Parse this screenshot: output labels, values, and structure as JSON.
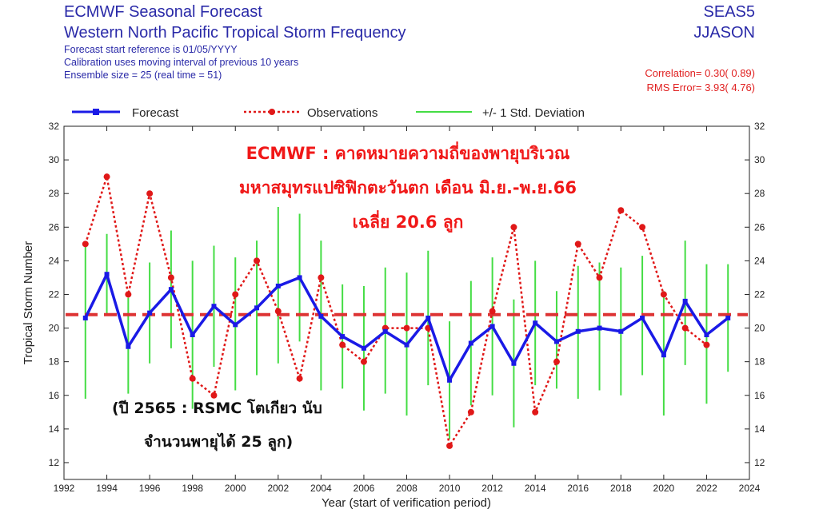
{
  "header": {
    "title": "ECMWF Seasonal Forecast",
    "subtitle": "Western North Pacific Tropical Storm Frequency",
    "line3": "Forecast start reference is 01/05/YYYY",
    "line4": "Calibration uses moving interval of previous 10 years",
    "line5": "Ensemble size =  25   (real time = 51)",
    "system": "SEAS5",
    "season": "JJASON",
    "correlation": "Correlation= 0.30( 0.89)",
    "rms": "RMS Error= 3.93( 4.76)"
  },
  "annotations": {
    "thai_line1": "ECMWF : คาดหมายความถี่ของพายุบริเวณ",
    "thai_line2": "มหาสมุทรแปซิฟิกตะวันตก เดือน มิ.ย.-พ.ย.66",
    "thai_line3": "เฉลี่ย 20.6 ลูก",
    "note_line1": "(ปี 2565 : RSMC โตเกียว นับ",
    "note_line2": "จำนวนพายุได้ 25 ลูก)"
  },
  "colors": {
    "forecast": "#1a1ae6",
    "observations": "#e01818",
    "std": "#44dd44",
    "mean_line": "#dd3333"
  },
  "chart_data": {
    "type": "line",
    "xlabel": "Year (start of verification period)",
    "ylabel": "Tropical Storm Number",
    "xlim": [
      1992,
      2024
    ],
    "ylim": [
      11,
      32
    ],
    "xticks": [
      1992,
      1994,
      1996,
      1998,
      2000,
      2002,
      2004,
      2006,
      2008,
      2010,
      2012,
      2014,
      2016,
      2018,
      2020,
      2022,
      2024
    ],
    "yticks": [
      12,
      14,
      16,
      18,
      20,
      22,
      24,
      26,
      28,
      30,
      32
    ],
    "legend": [
      "Forecast",
      "Observations",
      "+/- 1 Std. Deviation"
    ],
    "mean_value": 20.8,
    "forecast": {
      "name": "Forecast",
      "x": [
        1993,
        1994,
        1995,
        1996,
        1997,
        1998,
        1999,
        2000,
        2001,
        2002,
        2003,
        2004,
        2005,
        2006,
        2007,
        2008,
        2009,
        2010,
        2011,
        2012,
        2013,
        2014,
        2015,
        2016,
        2017,
        2018,
        2019,
        2020,
        2021,
        2022,
        2023
      ],
      "y": [
        20.6,
        23.2,
        18.9,
        20.9,
        22.3,
        19.6,
        21.3,
        20.2,
        21.2,
        22.5,
        23.0,
        20.7,
        19.5,
        18.8,
        19.8,
        19.0,
        20.6,
        16.9,
        19.1,
        20.1,
        17.9,
        20.3,
        19.2,
        19.8,
        20.0,
        19.8,
        20.6,
        18.4,
        21.6,
        19.6,
        20.6
      ]
    },
    "std_dev": {
      "name": "+/- 1 Std. Deviation",
      "x": [
        1993,
        1994,
        1995,
        1996,
        1997,
        1998,
        1999,
        2000,
        2001,
        2002,
        2003,
        2004,
        2005,
        2006,
        2007,
        2008,
        2009,
        2010,
        2011,
        2012,
        2013,
        2014,
        2015,
        2016,
        2017,
        2018,
        2019,
        2020,
        2021,
        2022,
        2023
      ],
      "low": [
        15.8,
        20.8,
        16.1,
        17.9,
        18.8,
        15.2,
        17.7,
        16.3,
        17.2,
        17.9,
        19.2,
        16.3,
        16.4,
        15.1,
        16.1,
        14.8,
        16.6,
        13.4,
        15.4,
        16.0,
        14.1,
        16.6,
        16.4,
        15.8,
        16.3,
        16.0,
        17.2,
        14.8,
        17.8,
        15.5,
        17.4
      ],
      "high": [
        25.1,
        25.6,
        21.8,
        23.9,
        25.8,
        24.0,
        24.9,
        24.2,
        25.2,
        27.2,
        26.8,
        25.2,
        22.6,
        22.5,
        23.6,
        23.3,
        24.6,
        20.4,
        22.8,
        24.2,
        21.7,
        24.0,
        22.2,
        23.7,
        23.9,
        23.6,
        24.3,
        22.2,
        25.2,
        23.8,
        23.8
      ]
    },
    "observations": {
      "name": "Observations",
      "x": [
        1993,
        1994,
        1995,
        1996,
        1997,
        1998,
        1999,
        2000,
        2001,
        2002,
        2003,
        2004,
        2005,
        2006,
        2007,
        2008,
        2009,
        2010,
        2011,
        2012,
        2013,
        2014,
        2015,
        2016,
        2017,
        2018,
        2019,
        2020,
        2021,
        2022
      ],
      "y": [
        25,
        29,
        22,
        28,
        23,
        17,
        16,
        22,
        24,
        21,
        17,
        23,
        19,
        18,
        20,
        20,
        20,
        13,
        15,
        21,
        26,
        15,
        18,
        25,
        23,
        27,
        26,
        22,
        20,
        19
      ]
    }
  }
}
